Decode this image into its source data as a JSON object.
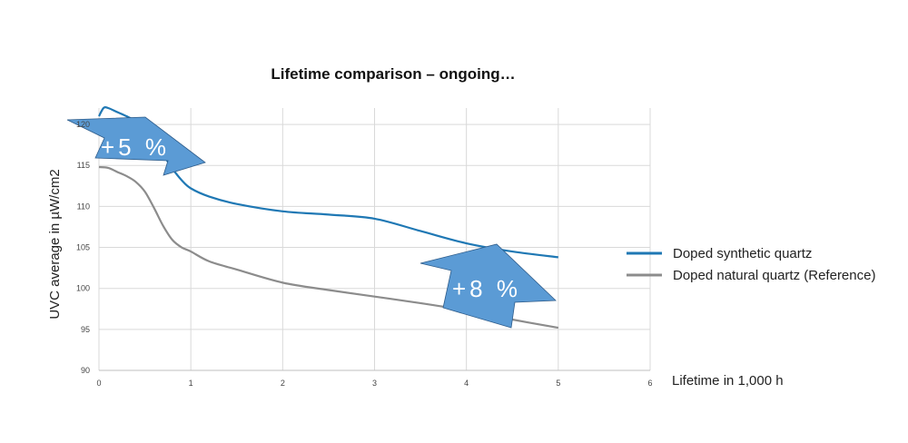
{
  "chart_data": {
    "type": "line",
    "title": "Lifetime comparison – ongoing…",
    "xlabel": "Lifetime in 1,000 h",
    "ylabel": "UVC average in µW/cm2",
    "xlim": [
      0,
      6
    ],
    "ylim": [
      90,
      122
    ],
    "xticks": [
      "0",
      "1",
      "2",
      "3",
      "4",
      "5",
      "6"
    ],
    "yticks": [
      "90",
      "95",
      "100",
      "105",
      "110",
      "115",
      "120"
    ],
    "grid": true,
    "legend_position": "right",
    "series": [
      {
        "name": "Doped synthetic quartz",
        "color": "#1f78b4",
        "x": [
          0,
          0.05,
          0.1,
          0.2,
          0.3,
          0.4,
          0.5,
          0.6,
          0.7,
          0.8,
          0.9,
          1.0,
          1.2,
          1.5,
          2.0,
          2.5,
          3.0,
          3.5,
          4.0,
          4.5,
          5.0
        ],
        "y": [
          121.0,
          122.0,
          122.0,
          121.5,
          121.0,
          120.4,
          119.4,
          118.0,
          116.3,
          114.6,
          113.2,
          112.2,
          111.2,
          110.3,
          109.4,
          109.0,
          108.5,
          107.0,
          105.5,
          104.5,
          103.8
        ]
      },
      {
        "name": "Doped natural quartz (Reference)",
        "color": "#8c8c8c",
        "x": [
          0,
          0.1,
          0.2,
          0.3,
          0.4,
          0.5,
          0.6,
          0.7,
          0.8,
          0.9,
          1.0,
          1.2,
          1.5,
          2.0,
          2.5,
          3.0,
          3.5,
          4.0,
          4.5,
          5.0
        ],
        "y": [
          114.8,
          114.7,
          114.2,
          113.7,
          113.0,
          111.8,
          109.8,
          107.6,
          105.9,
          105.0,
          104.5,
          103.3,
          102.3,
          100.7,
          99.8,
          99.0,
          98.2,
          97.3,
          96.2,
          95.2
        ]
      }
    ],
    "annotations": [
      {
        "text": "+5 %",
        "shape": "arrow",
        "color": "#5b9bd5"
      },
      {
        "text": "+8 %",
        "shape": "arrow",
        "color": "#5b9bd5"
      }
    ]
  }
}
